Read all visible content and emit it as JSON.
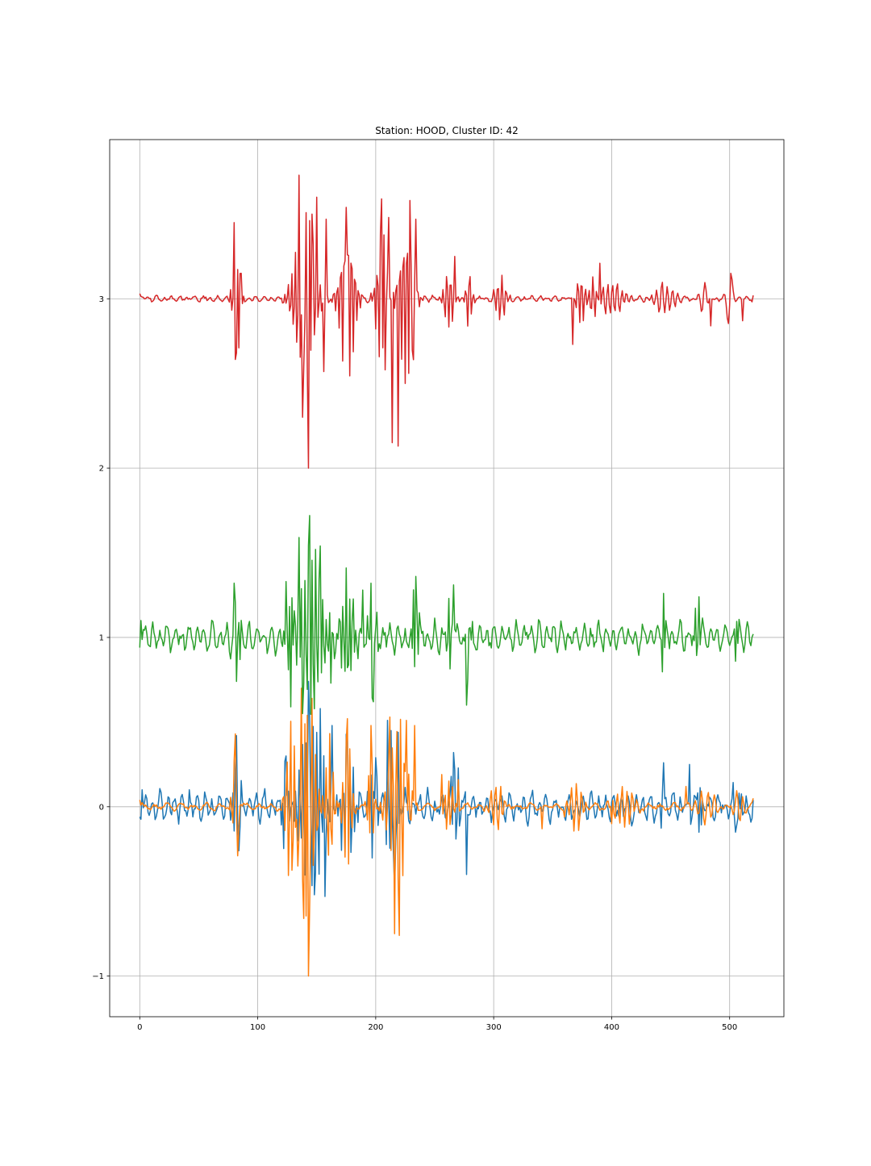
{
  "chart_data": {
    "type": "line",
    "title": "Station: HOOD, Cluster ID: 42",
    "xlabel": "",
    "ylabel": "",
    "xlim": [
      -25.5,
      546
    ],
    "ylim": [
      -1.24,
      3.94
    ],
    "xticks": [
      0,
      100,
      200,
      300,
      400,
      500
    ],
    "xtick_labels": [
      "0",
      "100",
      "200",
      "300",
      "400",
      "500"
    ],
    "yticks": [
      -1,
      0,
      1,
      2,
      3
    ],
    "ytick_labels": [
      "−1",
      "0",
      "1",
      "2",
      "3"
    ],
    "grid": true,
    "n_samples": 520,
    "series": [
      {
        "color": "#1f77b4",
        "offset": 0,
        "noise": 0.1,
        "noise_period": 6.3,
        "seed": 11,
        "bursts": [
          [
            82,
            0.24,
            2.6,
            4.2
          ],
          [
            124,
            0.3,
            2.3,
            3.3
          ],
          [
            146,
            0.56,
            3.0,
            11
          ],
          [
            176,
            0.38,
            2.8,
            6.5
          ],
          [
            198,
            0.32,
            2.5,
            3.5
          ],
          [
            214,
            0.42,
            2.8,
            4.5
          ],
          [
            268,
            0.3,
            3.0,
            4.5
          ],
          [
            444,
            0.18,
            2.4,
            2.2
          ],
          [
            474,
            0.17,
            2.4,
            2.4
          ],
          [
            506,
            0.12,
            2.4,
            3.5
          ]
        ],
        "anchors": [
          [
            0,
            -0.06
          ],
          [
            2,
            0.1
          ],
          [
            42,
            0.1
          ],
          [
            74,
            0.05
          ],
          [
            82,
            0.42
          ],
          [
            84,
            -0.26
          ],
          [
            124,
            0.3
          ],
          [
            143,
            0.74
          ],
          [
            148,
            -0.52
          ],
          [
            153,
            0.58
          ],
          [
            157,
            -0.53
          ],
          [
            163,
            0.48
          ],
          [
            176,
            0.4
          ],
          [
            200,
            0.29
          ],
          [
            210,
            0.51
          ],
          [
            216,
            -0.48
          ],
          [
            219,
            0.44
          ],
          [
            266,
            0.32
          ],
          [
            277,
            -0.4
          ],
          [
            444,
            0.26
          ],
          [
            466,
            0.25
          ],
          [
            505,
            -0.15
          ],
          [
            520,
            0.04
          ]
        ]
      },
      {
        "color": "#ff7f0e",
        "offset": 0,
        "noise": 0.025,
        "noise_period": 11,
        "seed": 23,
        "bursts": [
          [
            81,
            0.3,
            2.8,
            3.0
          ],
          [
            128,
            0.55,
            3.2,
            4.5
          ],
          [
            143,
            0.78,
            3.1,
            6.5
          ],
          [
            161,
            0.45,
            3.0,
            3.5
          ],
          [
            176,
            0.45,
            3.0,
            4.0
          ],
          [
            196,
            0.3,
            2.8,
            3.0
          ],
          [
            219,
            0.55,
            3.4,
            9.0
          ],
          [
            262,
            0.17,
            3.2,
            4.5
          ],
          [
            302,
            0.14,
            4.0,
            6.0
          ],
          [
            370,
            0.16,
            4.2,
            6.0
          ],
          [
            410,
            0.12,
            4.2,
            10
          ],
          [
            480,
            0.1,
            5.5,
            9.0
          ],
          [
            508,
            0.1,
            5.5,
            5.0
          ]
        ],
        "anchors": [
          [
            0,
            0.04
          ],
          [
            81,
            0.43
          ],
          [
            83,
            -0.29
          ],
          [
            134,
            -0.35
          ],
          [
            137,
            0.7
          ],
          [
            139,
            -0.66
          ],
          [
            142,
            0.54
          ],
          [
            143,
            -1.0
          ],
          [
            146,
            0.64
          ],
          [
            176,
            0.52
          ],
          [
            196,
            0.48
          ],
          [
            212,
            0.53
          ],
          [
            216,
            -0.75
          ],
          [
            220,
            -0.76
          ],
          [
            226,
            0.51
          ],
          [
            233,
            0.48
          ],
          [
            256,
            0.19
          ],
          [
            270,
            0.16
          ],
          [
            306,
            0.12
          ],
          [
            341,
            -0.13
          ],
          [
            360,
            -0.06
          ],
          [
            400,
            -0.1
          ],
          [
            463,
            0.12
          ],
          [
            520,
            0.05
          ]
        ]
      },
      {
        "color": "#2ca02c",
        "offset": 1,
        "noise": 0.1,
        "noise_period": 6.3,
        "seed": 37,
        "bursts": [
          [
            83,
            0.2,
            2.6,
            3.5
          ],
          [
            128,
            0.3,
            2.4,
            4.0
          ],
          [
            146,
            0.55,
            3.0,
            10
          ],
          [
            176,
            0.3,
            2.8,
            7.0
          ],
          [
            198,
            0.28,
            2.5,
            4.0
          ],
          [
            234,
            0.34,
            2.6,
            3.5
          ],
          [
            264,
            0.24,
            2.8,
            3.5
          ],
          [
            278,
            0.22,
            2.8,
            2.5
          ],
          [
            444,
            0.18,
            2.4,
            2.2
          ],
          [
            472,
            0.16,
            2.4,
            2.2
          ],
          [
            506,
            0.12,
            2.4,
            3.0
          ]
        ],
        "anchors": [
          [
            0,
            0.94
          ],
          [
            1,
            1.1
          ],
          [
            80,
            1.32
          ],
          [
            82,
            0.74
          ],
          [
            124,
            1.33
          ],
          [
            128,
            0.59
          ],
          [
            135,
            1.59
          ],
          [
            138,
            0.55
          ],
          [
            144,
            1.72
          ],
          [
            153,
            1.54
          ],
          [
            162,
            0.73
          ],
          [
            175,
            1.41
          ],
          [
            189,
            1.28
          ],
          [
            196,
            1.32
          ],
          [
            198,
            0.62
          ],
          [
            234,
            1.36
          ],
          [
            236,
            0.9
          ],
          [
            266,
            1.31
          ],
          [
            277,
            0.6
          ],
          [
            444,
            1.26
          ],
          [
            474,
            1.24
          ],
          [
            520,
            1.02
          ]
        ]
      },
      {
        "color": "#d62728",
        "offset": 3,
        "noise": 0.02,
        "noise_period": 6.5,
        "seed": 53,
        "bursts": [
          [
            82,
            0.4,
            2.8,
            3.5
          ],
          [
            140,
            0.55,
            3.0,
            10
          ],
          [
            176,
            0.5,
            3.0,
            7.0
          ],
          [
            205,
            0.45,
            2.8,
            5.0
          ],
          [
            226,
            0.5,
            3.0,
            7.0
          ],
          [
            262,
            0.18,
            3.2,
            5.0
          ],
          [
            279,
            0.18,
            3.3,
            3.0
          ],
          [
            306,
            0.14,
            3.5,
            5.0
          ],
          [
            374,
            0.16,
            3.2,
            4.0
          ],
          [
            385,
            0.12,
            3.2,
            4.0
          ],
          [
            400,
            0.1,
            4.0,
            12.0
          ],
          [
            445,
            0.09,
            4.5,
            10
          ],
          [
            478,
            0.12,
            6.0,
            4.0
          ],
          [
            500,
            0.16,
            7.5,
            3.0
          ]
        ],
        "anchors": [
          [
            0,
            3.03
          ],
          [
            56,
            3.01
          ],
          [
            80,
            3.45
          ],
          [
            82,
            2.68
          ],
          [
            86,
            3.15
          ],
          [
            135,
            3.73
          ],
          [
            138,
            2.3
          ],
          [
            143,
            2.0
          ],
          [
            146,
            3.5
          ],
          [
            150,
            3.6
          ],
          [
            156,
            2.57
          ],
          [
            158,
            3.47
          ],
          [
            175,
            3.54
          ],
          [
            205,
            3.59
          ],
          [
            208,
            2.58
          ],
          [
            211,
            3.48
          ],
          [
            214,
            2.15
          ],
          [
            219,
            2.13
          ],
          [
            229,
            3.58
          ],
          [
            232,
            2.64
          ],
          [
            234,
            3.47
          ],
          [
            267,
            3.25
          ],
          [
            367,
            2.73
          ],
          [
            390,
            3.21
          ],
          [
            484,
            2.84
          ],
          [
            501,
            3.15
          ],
          [
            511,
            2.87
          ],
          [
            520,
            3.02
          ]
        ]
      }
    ]
  }
}
